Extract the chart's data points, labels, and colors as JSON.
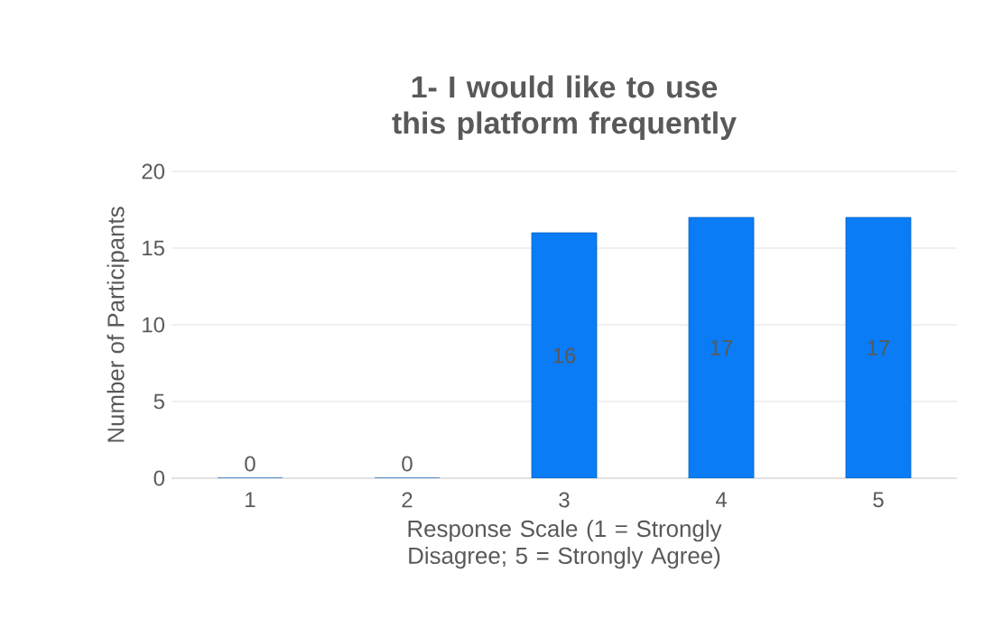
{
  "chart_data": {
    "type": "bar",
    "title": "1- I would like to use this platform frequently",
    "xlabel": "Response Scale (1 = Strongly Disagree; 5 = Strongly Agree)",
    "ylabel": "Number of Participants",
    "categories": [
      "1",
      "2",
      "3",
      "4",
      "5"
    ],
    "values": [
      0,
      0,
      16,
      17,
      17
    ],
    "color": "#0a7cf5",
    "ylim": [
      0,
      20
    ],
    "yticks": [
      0,
      5,
      10,
      15,
      20
    ],
    "grid": "y",
    "data_labels": true
  }
}
